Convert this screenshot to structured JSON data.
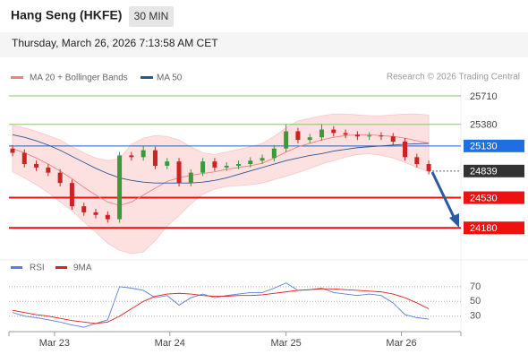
{
  "header": {
    "title": "Hang Seng (HKFE)",
    "timeframe": "30 MIN",
    "timestamp": "Thursday, March 26, 2026 7:13:58 AM CET",
    "source": "Research © 2026 Trading Central"
  },
  "chart_data": [
    {
      "type": "candlestick",
      "x": [
        0,
        1,
        2,
        3,
        4,
        5,
        6,
        7,
        8,
        9,
        10,
        11,
        12,
        13,
        14,
        15,
        16,
        17,
        18,
        19,
        20,
        21,
        22,
        23,
        24,
        25,
        26,
        27,
        28,
        29,
        30,
        31,
        32,
        33,
        34,
        35
      ],
      "open": [
        25100,
        25050,
        24920,
        24880,
        24820,
        24700,
        24430,
        24360,
        24330,
        24280,
        25020,
        25000,
        25080,
        24900,
        24950,
        24700,
        24820,
        24950,
        24880,
        24900,
        24920,
        24960,
        24990,
        25100,
        25300,
        25200,
        25230,
        25320,
        25280,
        25260,
        25240,
        25250,
        25240,
        25180,
        25000,
        24920
      ],
      "high": [
        25140,
        25090,
        24960,
        24920,
        24860,
        24740,
        24470,
        24400,
        24370,
        25060,
        25060,
        25130,
        25120,
        24990,
        24990,
        24860,
        24990,
        24990,
        24940,
        24960,
        25000,
        25030,
        25140,
        25380,
        25340,
        25270,
        25380,
        25360,
        25320,
        25300,
        25290,
        25290,
        25280,
        25220,
        25040,
        24960
      ],
      "low": [
        25010,
        24880,
        24840,
        24780,
        24660,
        24390,
        24320,
        24290,
        24240,
        24240,
        24960,
        24960,
        24860,
        24860,
        24660,
        24660,
        24780,
        24840,
        24840,
        24860,
        24880,
        24920,
        24950,
        25060,
        25160,
        25160,
        25190,
        25240,
        25220,
        25200,
        25200,
        25200,
        25140,
        24960,
        24880,
        24800
      ],
      "close": [
        25050,
        24920,
        24880,
        24820,
        24700,
        24430,
        24360,
        24330,
        24280,
        25020,
        25000,
        25080,
        24900,
        24950,
        24700,
        24820,
        24950,
        24880,
        24900,
        24920,
        24960,
        24990,
        25100,
        25300,
        25200,
        25230,
        25320,
        25280,
        25260,
        25240,
        25250,
        25240,
        25180,
        25000,
        24920,
        24839
      ],
      "up_color": "#3a9a3a",
      "down_color": "#cc2222",
      "series": [
        {
          "name": "MA 20 + Bollinger Bands",
          "color": "#f08080",
          "band_color": "#fde0e0",
          "values": [
            25100,
            25050,
            24990,
            24920,
            24840,
            24750,
            24650,
            24560,
            24480,
            24440,
            24480,
            24560,
            24640,
            24720,
            24760,
            24790,
            24810,
            24830,
            24860,
            24880,
            24900,
            24930,
            24990,
            25060,
            25120,
            25160,
            25200,
            25230,
            25250,
            25260,
            25260,
            25250,
            25240,
            25220,
            25190,
            25160
          ],
          "upper": [
            25370,
            25340,
            25300,
            25250,
            25200,
            25120,
            25050,
            24990,
            24960,
            24980,
            25150,
            25220,
            25250,
            25240,
            25200,
            25120,
            25050,
            25030,
            25060,
            25090,
            25120,
            25160,
            25240,
            25340,
            25420,
            25450,
            25480,
            25500,
            25500,
            25490,
            25480,
            25480,
            25490,
            25500,
            25500,
            25490
          ],
          "lower": [
            24830,
            24760,
            24680,
            24590,
            24480,
            24380,
            24250,
            24130,
            24000,
            23920,
            23880,
            23900,
            24030,
            24200,
            24320,
            24460,
            24570,
            24630,
            24660,
            24670,
            24680,
            24700,
            24740,
            24780,
            24820,
            24870,
            24920,
            24960,
            25000,
            25030,
            25040,
            25020,
            24990,
            24940,
            24880,
            24830
          ]
        },
        {
          "name": "MA 50",
          "color": "#2a5599",
          "values": [
            25260,
            25230,
            25190,
            25140,
            25080,
            25010,
            24940,
            24870,
            24810,
            24760,
            24730,
            24710,
            24700,
            24700,
            24700,
            24700,
            24710,
            24730,
            24760,
            24800,
            24840,
            24880,
            24920,
            24960,
            24990,
            25020,
            25040,
            25070,
            25090,
            25110,
            25120,
            25130,
            25140,
            25150,
            25155,
            25160
          ]
        }
      ],
      "levels": [
        {
          "value": 25710,
          "color": "#8cc46a",
          "label_color": "#444444"
        },
        {
          "value": 25380,
          "color": "#8cc46a",
          "label_color": "#444444"
        },
        {
          "value": 25130,
          "color": "#1f5fbf",
          "box": "#1f6fe0",
          "label_color": "#ffffff"
        },
        {
          "value": 24839,
          "color": "#555555",
          "box": "#333333",
          "label_color": "#ffffff",
          "dash": true
        },
        {
          "value": 24530,
          "color": "#ee1111",
          "box": "#ee1111",
          "label_color": "#ffffff"
        },
        {
          "value": 24180,
          "color": "#ee1111",
          "box": "#ee1111",
          "label_color": "#ffffff"
        }
      ],
      "xlim": [
        -0.3,
        37.7
      ],
      "ylim": [
        23860,
        25835
      ]
    },
    {
      "type": "line",
      "x": [
        0,
        1,
        2,
        3,
        4,
        5,
        6,
        7,
        8,
        9,
        10,
        11,
        12,
        13,
        14,
        15,
        16,
        17,
        18,
        19,
        20,
        21,
        22,
        23,
        24,
        25,
        26,
        27,
        28,
        29,
        30,
        31,
        32,
        33,
        34,
        35
      ],
      "series": [
        {
          "name": "RSI",
          "color": "#5b7fd6",
          "values": [
            35,
            30,
            28,
            25,
            22,
            18,
            15,
            20,
            25,
            70,
            68,
            65,
            55,
            58,
            45,
            55,
            60,
            55,
            58,
            60,
            62,
            62,
            68,
            75,
            65,
            66,
            68,
            62,
            60,
            58,
            60,
            58,
            48,
            32,
            28,
            26
          ]
        },
        {
          "name": "9MA",
          "color": "#e02020",
          "values": [
            38,
            35,
            32,
            30,
            27,
            24,
            22,
            20,
            22,
            30,
            40,
            50,
            57,
            60,
            61,
            60,
            58,
            57,
            57,
            58,
            58,
            59,
            61,
            63,
            65,
            66,
            67,
            67,
            66,
            65,
            64,
            63,
            60,
            55,
            48,
            40
          ]
        }
      ],
      "xlim": [
        -0.3,
        37.7
      ],
      "ylim": [
        9,
        82
      ],
      "yticks": [
        70,
        50,
        30
      ],
      "xticks": [
        {
          "value": 3.53,
          "label": "Mar 23"
        },
        {
          "value": 13.23,
          "label": "Mar 24"
        },
        {
          "value": 23.0,
          "label": "Mar 25"
        },
        {
          "value": 32.7,
          "label": "Mar 26"
        }
      ]
    }
  ]
}
